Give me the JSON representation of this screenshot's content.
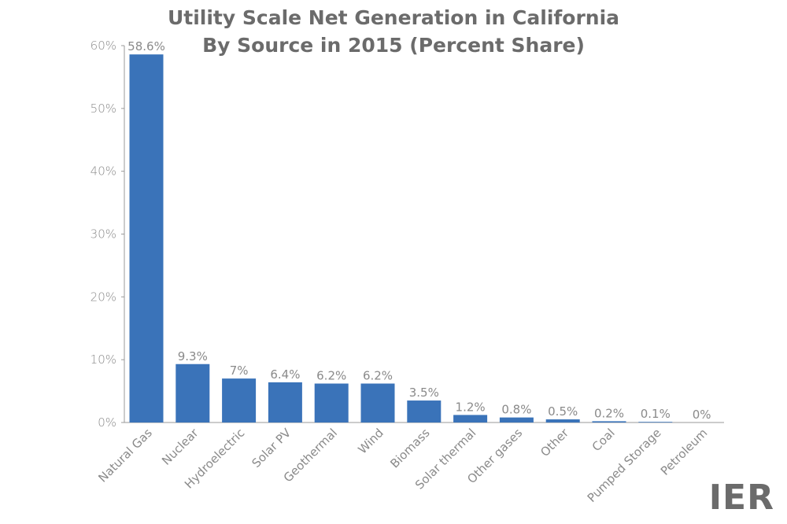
{
  "chart_data": {
    "type": "bar",
    "title": "Utility Scale Net Generation in California",
    "subtitle": "By Source in 2015 (Percent Share)",
    "categories": [
      "Natural Gas",
      "Nuclear",
      "Hydroelectric",
      "Solar PV",
      "Geothermal",
      "Wind",
      "Biomass",
      "Solar thermal",
      "Other gases",
      "Other",
      "Coal",
      "Pumped Storage",
      "Petroleum"
    ],
    "values": [
      58.6,
      9.3,
      7,
      6.4,
      6.2,
      6.2,
      3.5,
      1.2,
      0.8,
      0.5,
      0.2,
      0.1,
      0
    ],
    "value_labels": [
      "58.6%",
      "9.3%",
      "7%",
      "6.4%",
      "6.2%",
      "6.2%",
      "3.5%",
      "1.2%",
      "0.8%",
      "0.5%",
      "0.2%",
      "0.1%",
      "0%"
    ],
    "yticks": [
      "0%",
      "10%",
      "20%",
      "30%",
      "40%",
      "50%",
      "60%"
    ],
    "ytick_values": [
      0,
      10,
      20,
      30,
      40,
      50,
      60
    ],
    "ylim": [
      0,
      60
    ],
    "grid": false,
    "bar_color": "#3a73b9"
  },
  "brand": "IER"
}
